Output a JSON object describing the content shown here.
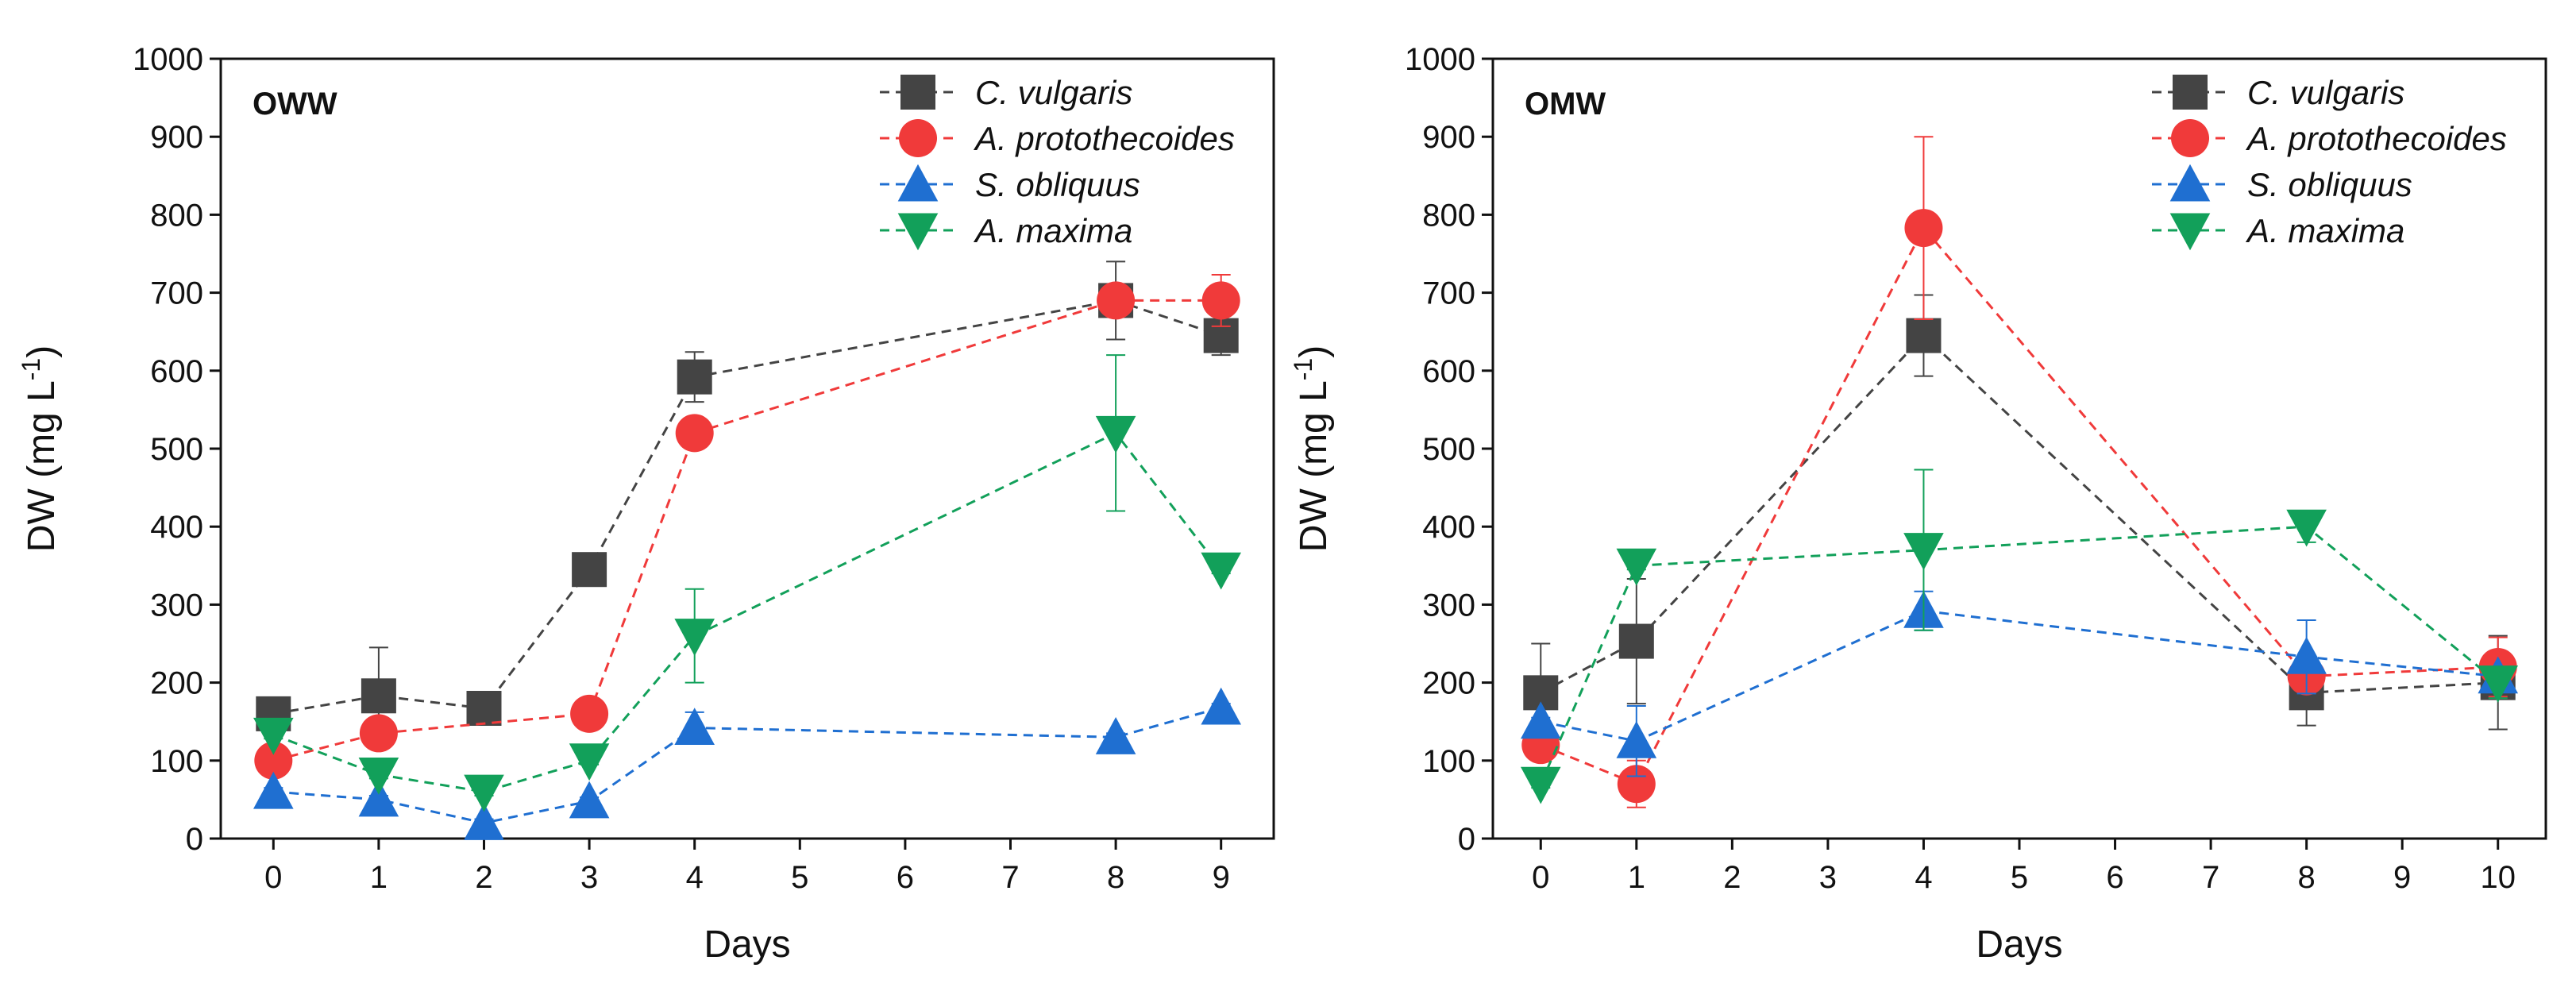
{
  "chart_data": [
    {
      "type": "line",
      "panel_label": "OWW",
      "xlabel": "Days",
      "ylabel": "DW (mg L",
      "ylabel_superscript": "-1",
      "ylabel_suffix": ")",
      "xlim": [
        -0.5,
        9.5
      ],
      "ylim": [
        0,
        1000
      ],
      "xticks": [
        0,
        1,
        2,
        3,
        4,
        5,
        6,
        7,
        8,
        9
      ],
      "yticks": [
        0,
        100,
        200,
        300,
        400,
        500,
        600,
        700,
        800,
        900,
        1000
      ],
      "legend_position": "top-right",
      "series": [
        {
          "name": "C. vulgaris",
          "color": "#444444",
          "marker": "square",
          "x": [
            0,
            1,
            2,
            3,
            4,
            8,
            9
          ],
          "y": [
            160,
            183,
            167,
            345,
            592,
            690,
            645
          ],
          "err": [
            8,
            62,
            5,
            8,
            32,
            50,
            25
          ]
        },
        {
          "name": "A. protothecoides",
          "color": "#f03a3a",
          "marker": "circle",
          "x": [
            0,
            1,
            3,
            4,
            8,
            9
          ],
          "y": [
            100,
            135,
            160,
            520,
            690,
            690
          ],
          "err": [
            5,
            10,
            20,
            10,
            20,
            33
          ]
        },
        {
          "name": "S. obliquus",
          "color": "#1f6fd1",
          "marker": "triangle-up",
          "x": [
            0,
            1,
            2,
            3,
            4,
            8,
            9
          ],
          "y": [
            60,
            50,
            20,
            48,
            142,
            130,
            168
          ],
          "err": [
            5,
            5,
            5,
            5,
            20,
            5,
            5
          ]
        },
        {
          "name": "A. maxima",
          "color": "#12a05a",
          "marker": "triangle-down",
          "x": [
            0,
            1,
            2,
            3,
            4,
            8,
            9
          ],
          "y": [
            133,
            82,
            60,
            100,
            260,
            520,
            345
          ],
          "err": [
            5,
            5,
            5,
            5,
            60,
            100,
            5
          ]
        }
      ]
    },
    {
      "type": "line",
      "panel_label": "OMW",
      "xlabel": "Days",
      "ylabel": "DW (mg L",
      "ylabel_superscript": "-1",
      "ylabel_suffix": ")",
      "xlim": [
        -0.5,
        10.5
      ],
      "ylim": [
        0,
        1000
      ],
      "xticks": [
        0,
        1,
        2,
        3,
        4,
        5,
        6,
        7,
        8,
        9,
        10
      ],
      "yticks": [
        0,
        100,
        200,
        300,
        400,
        500,
        600,
        700,
        800,
        900,
        1000
      ],
      "legend_position": "top-right",
      "series": [
        {
          "name": "C. vulgaris",
          "color": "#444444",
          "marker": "square",
          "x": [
            0,
            1,
            4,
            8,
            10
          ],
          "y": [
            187,
            253,
            645,
            187,
            200
          ],
          "err": [
            63,
            80,
            52,
            42,
            60
          ]
        },
        {
          "name": "A. protothecoides",
          "color": "#f03a3a",
          "marker": "circle",
          "x": [
            0,
            1,
            4,
            8,
            10
          ],
          "y": [
            120,
            70,
            783,
            208,
            220
          ],
          "err": [
            15,
            30,
            117,
            10,
            38
          ]
        },
        {
          "name": "S. obliquus",
          "color": "#1f6fd1",
          "marker": "triangle-up",
          "x": [
            0,
            1,
            4,
            8,
            10
          ],
          "y": [
            150,
            125,
            292,
            233,
            208
          ],
          "err": [
            5,
            45,
            25,
            47,
            10
          ]
        },
        {
          "name": "A. maxima",
          "color": "#12a05a",
          "marker": "triangle-down",
          "x": [
            0,
            1,
            4,
            8,
            10
          ],
          "y": [
            70,
            350,
            370,
            400,
            200
          ],
          "err": [
            5,
            5,
            103,
            20,
            20
          ]
        }
      ]
    }
  ]
}
